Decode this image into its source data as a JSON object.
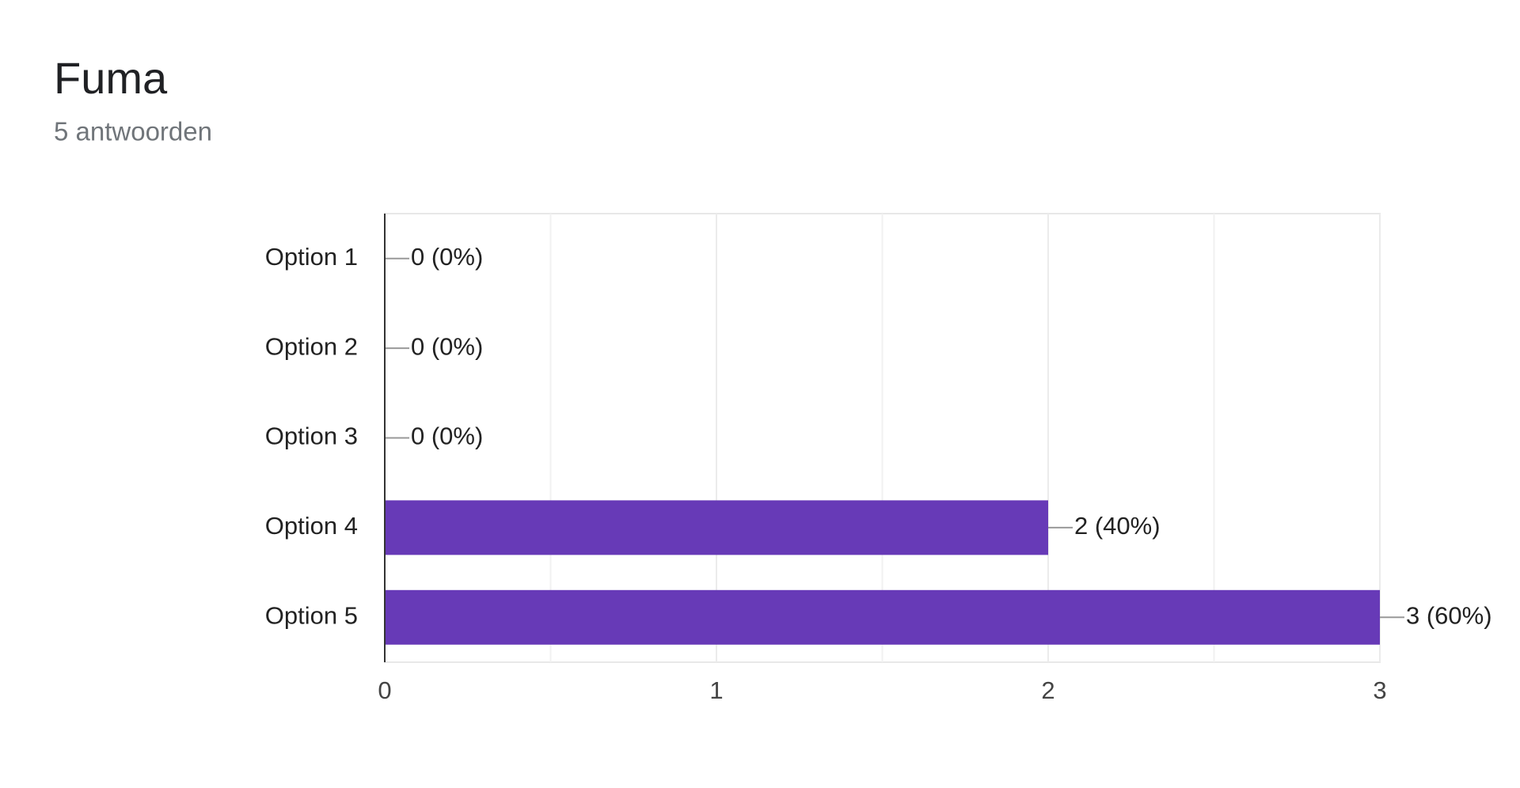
{
  "chart_data": {
    "type": "bar",
    "orientation": "horizontal",
    "title": "Fuma",
    "subtitle": "5 antwoorden",
    "categories": [
      "Option 1",
      "Option 2",
      "Option 3",
      "Option 4",
      "Option 5"
    ],
    "values": [
      0,
      0,
      0,
      2,
      3
    ],
    "value_labels": [
      "0 (0%)",
      "0 (0%)",
      "0 (0%)",
      "2 (40%)",
      "3 (60%)"
    ],
    "color": "#673ab7",
    "xlim": [
      0,
      3
    ],
    "xticks": [
      0,
      1,
      2,
      3
    ],
    "grid": true
  }
}
